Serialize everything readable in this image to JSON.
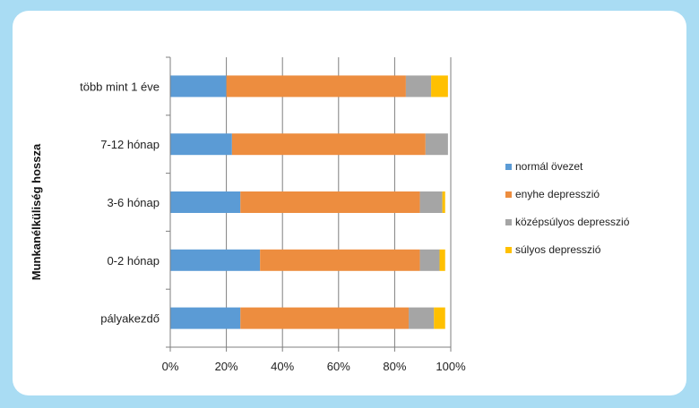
{
  "chart_data": {
    "type": "bar",
    "orientation": "horizontal",
    "stacked": "percent",
    "title": "",
    "xlabel": "",
    "ylabel": "Munkanélküliség hossza",
    "xlim": [
      0,
      100
    ],
    "x_ticks": [
      "0%",
      "20%",
      "40%",
      "60%",
      "80%",
      "100%"
    ],
    "grid": "vertical",
    "legend_position": "right",
    "categories": [
      "több mint 1 éve",
      "7-12 hónap",
      "3-6 hónap",
      "0-2 hónap",
      "pályakezdő"
    ],
    "series": [
      {
        "name": "normál övezet",
        "color": "#5b9bd5",
        "values": [
          20,
          22,
          25,
          32,
          25
        ]
      },
      {
        "name": "enyhe depresszió",
        "color": "#ed8d3f",
        "values": [
          64,
          69,
          64,
          57,
          60
        ]
      },
      {
        "name": "középsúlyos depresszió",
        "color": "#a5a5a5",
        "values": [
          9,
          8,
          8,
          7,
          9
        ]
      },
      {
        "name": "súlyos depresszió",
        "color": "#ffc000",
        "values": [
          6,
          0,
          1,
          2,
          4
        ]
      }
    ]
  }
}
